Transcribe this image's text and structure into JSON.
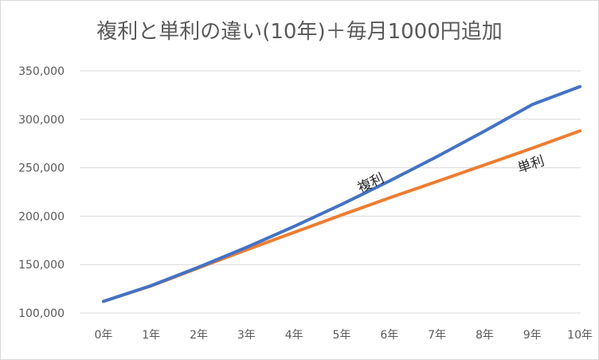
{
  "chart_data": {
    "type": "line",
    "title": "複利と単利の違い(10年)＋毎月1000円追加",
    "xlabel": "",
    "ylabel": "",
    "categories": [
      "0年",
      "1年",
      "2年",
      "3年",
      "4年",
      "5年",
      "6年",
      "7年",
      "8年",
      "9年",
      "10年"
    ],
    "ylim": [
      100000,
      350000
    ],
    "yticks": [
      "100,000",
      "150,000",
      "200,000",
      "250,000",
      "300,000",
      "350,000"
    ],
    "ytick_values": [
      100000,
      150000,
      200000,
      250000,
      300000,
      350000
    ],
    "grid": true,
    "series": [
      {
        "color": "#4472c4",
        "values": [
          112000,
          128300,
          147400,
          167800,
          189400,
          212200,
          236300,
          261500,
          287900,
          315300,
          333800
        ]
      },
      {
        "color": "#ed7d31",
        "values": [
          112000,
          128000,
          146700,
          165200,
          183200,
          201200,
          218800,
          235800,
          253000,
          270200,
          288000
        ]
      }
    ],
    "annotations": [
      {
        "text": "複利",
        "series": 0,
        "x_index": 5.65,
        "y": 230000,
        "rotate": -25
      },
      {
        "text": "単利",
        "series": 1,
        "x_index": 9.0,
        "y": 249000,
        "rotate": -18
      }
    ]
  }
}
